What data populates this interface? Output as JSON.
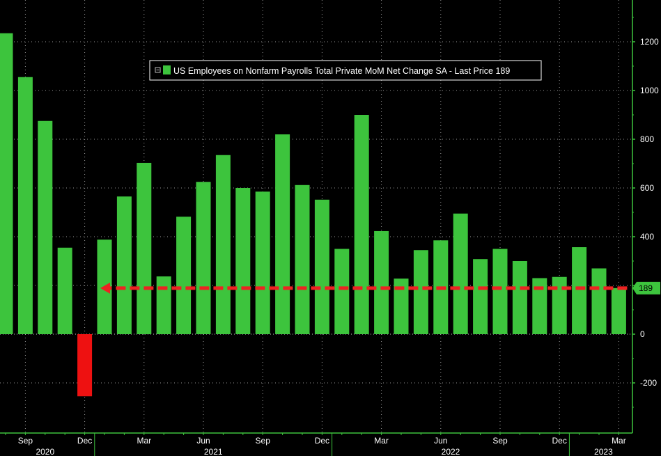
{
  "chart_data": {
    "type": "bar",
    "legend_text": "US Employees on Nonfarm Payrolls Total Private MoM Net Change SA - Last Price 189",
    "legend_position": "top-center",
    "grid": true,
    "x": [
      "2020-08",
      "2020-09",
      "2020-10",
      "2020-11",
      "2020-12",
      "2021-01",
      "2021-02",
      "2021-03",
      "2021-04",
      "2021-05",
      "2021-06",
      "2021-07",
      "2021-08",
      "2021-09",
      "2021-10",
      "2021-11",
      "2021-12",
      "2022-01",
      "2022-02",
      "2022-03",
      "2022-04",
      "2022-05",
      "2022-06",
      "2022-07",
      "2022-08",
      "2022-09",
      "2022-10",
      "2022-11",
      "2022-12",
      "2023-01",
      "2023-02",
      "2023-03"
    ],
    "values": [
      1235,
      1055,
      875,
      355,
      -255,
      388,
      565,
      703,
      237,
      482,
      625,
      735,
      600,
      585,
      820,
      612,
      552,
      350,
      900,
      423,
      228,
      345,
      385,
      495,
      308,
      350,
      300,
      230,
      235,
      357,
      270,
      189
    ],
    "positive_color": "#3dc43d",
    "negative_color": "#ee1111",
    "ylim": [
      -400,
      1350
    ],
    "yticks": [
      -200,
      0,
      200,
      400,
      600,
      800,
      1000,
      1200
    ],
    "ytick_labels": [
      "-200",
      "0",
      "",
      "400",
      "600",
      "800",
      "1000",
      "1200"
    ],
    "month_ticks": [
      {
        "month": "2020-09",
        "label": "Sep"
      },
      {
        "month": "2020-12",
        "label": "Dec"
      },
      {
        "month": "2021-03",
        "label": "Mar"
      },
      {
        "month": "2021-06",
        "label": "Jun"
      },
      {
        "month": "2021-09",
        "label": "Sep"
      },
      {
        "month": "2021-12",
        "label": "Dec"
      },
      {
        "month": "2022-03",
        "label": "Mar"
      },
      {
        "month": "2022-06",
        "label": "Jun"
      },
      {
        "month": "2022-09",
        "label": "Sep"
      },
      {
        "month": "2022-12",
        "label": "Dec"
      },
      {
        "month": "2023-03",
        "label": "Mar"
      }
    ],
    "years": [
      {
        "label": "2020",
        "from": "2020-08",
        "to": "2020-12"
      },
      {
        "label": "2021",
        "from": "2021-01",
        "to": "2021-12"
      },
      {
        "label": "2022",
        "from": "2022-01",
        "to": "2022-12"
      },
      {
        "label": "2023",
        "from": "2023-01",
        "to": "2023-03"
      }
    ],
    "last_price": {
      "value": 189,
      "label": "189"
    },
    "reference_arrow": {
      "value": 189,
      "from": "2023-03",
      "to": "2021-01",
      "color": "#ee2222"
    }
  }
}
